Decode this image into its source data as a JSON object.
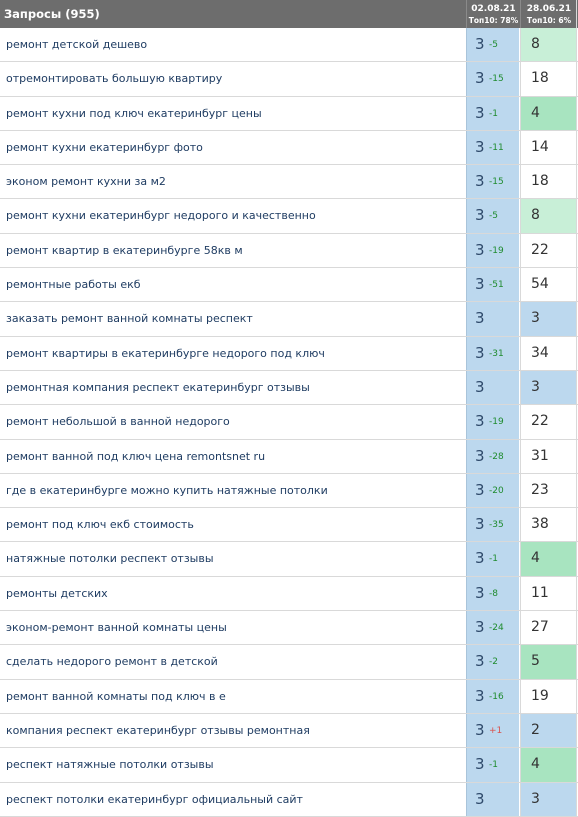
{
  "header": {
    "title": "Запросы (955)",
    "col1_date": "02.08.21",
    "col1_top": "Топ10: 78%",
    "col2_date": "28.06.21",
    "col2_top": "Топ10: 6%"
  },
  "colors": {
    "header_bg": "#6d6d6d",
    "col1_bg": "#bcd8ee",
    "top3_bg": "#bcd8ee",
    "best_bg": "#a8e4c0",
    "good_bg": "#c8efd7",
    "delta_positive": "#1f8b2e",
    "delta_negative": "#d9534f"
  },
  "rows": [
    {
      "query": "ремонт детской дешево",
      "pos1": "3",
      "delta": "-5",
      "pos2": "8",
      "level": "good"
    },
    {
      "query": "отремонтировать большую квартиру",
      "pos1": "3",
      "delta": "-15",
      "pos2": "18",
      "level": "none"
    },
    {
      "query": "ремонт кухни под ключ екатеринбург цены",
      "pos1": "3",
      "delta": "-1",
      "pos2": "4",
      "level": "best"
    },
    {
      "query": "ремонт кухни екатеринбург фото",
      "pos1": "3",
      "delta": "-11",
      "pos2": "14",
      "level": "none"
    },
    {
      "query": "эконом ремонт кухни за м2",
      "pos1": "3",
      "delta": "-15",
      "pos2": "18",
      "level": "none"
    },
    {
      "query": "ремонт кухни екатеринбург недорого и качественно",
      "pos1": "3",
      "delta": "-5",
      "pos2": "8",
      "level": "good"
    },
    {
      "query": "ремонт квартир в екатеринбурге 58кв м",
      "pos1": "3",
      "delta": "-19",
      "pos2": "22",
      "level": "none"
    },
    {
      "query": "ремонтные работы екб",
      "pos1": "3",
      "delta": "-51",
      "pos2": "54",
      "level": "none"
    },
    {
      "query": "заказать ремонт ванной комнаты респект",
      "pos1": "3",
      "delta": "",
      "pos2": "3",
      "level": "top3"
    },
    {
      "query": "ремонт квартиры в екатеринбурге недорого под ключ",
      "pos1": "3",
      "delta": "-31",
      "pos2": "34",
      "level": "none"
    },
    {
      "query": "ремонтная компания респект екатеринбург отзывы",
      "pos1": "3",
      "delta": "",
      "pos2": "3",
      "level": "top3"
    },
    {
      "query": "ремонт небольшой в ванной недорого",
      "pos1": "3",
      "delta": "-19",
      "pos2": "22",
      "level": "none"
    },
    {
      "query": "ремонт ванной под ключ цена remontsnet ru",
      "pos1": "3",
      "delta": "-28",
      "pos2": "31",
      "level": "none"
    },
    {
      "query": "где в екатеринбурге можно купить натяжные потолки",
      "pos1": "3",
      "delta": "-20",
      "pos2": "23",
      "level": "none"
    },
    {
      "query": "ремонт под ключ екб стоимость",
      "pos1": "3",
      "delta": "-35",
      "pos2": "38",
      "level": "none"
    },
    {
      "query": "натяжные потолки респект отзывы",
      "pos1": "3",
      "delta": "-1",
      "pos2": "4",
      "level": "best"
    },
    {
      "query": "ремонты детских",
      "pos1": "3",
      "delta": "-8",
      "pos2": "11",
      "level": "none"
    },
    {
      "query": "эконом-ремонт ванной комнаты цены",
      "pos1": "3",
      "delta": "-24",
      "pos2": "27",
      "level": "none"
    },
    {
      "query": "сделать недорого ремонт в детской",
      "pos1": "3",
      "delta": "-2",
      "pos2": "5",
      "level": "best"
    },
    {
      "query": "ремонт ванной комнаты под ключ в е",
      "pos1": "3",
      "delta": "-16",
      "pos2": "19",
      "level": "none"
    },
    {
      "query": "компания респект екатеринбург отзывы ремонтная",
      "pos1": "3",
      "delta": "+1",
      "pos2": "2",
      "level": "top3",
      "neg": true
    },
    {
      "query": "респект натяжные потолки отзывы",
      "pos1": "3",
      "delta": "-1",
      "pos2": "4",
      "level": "best"
    },
    {
      "query": "респект потолки екатеринбург официальный сайт",
      "pos1": "3",
      "delta": "",
      "pos2": "3",
      "level": "top3"
    }
  ]
}
